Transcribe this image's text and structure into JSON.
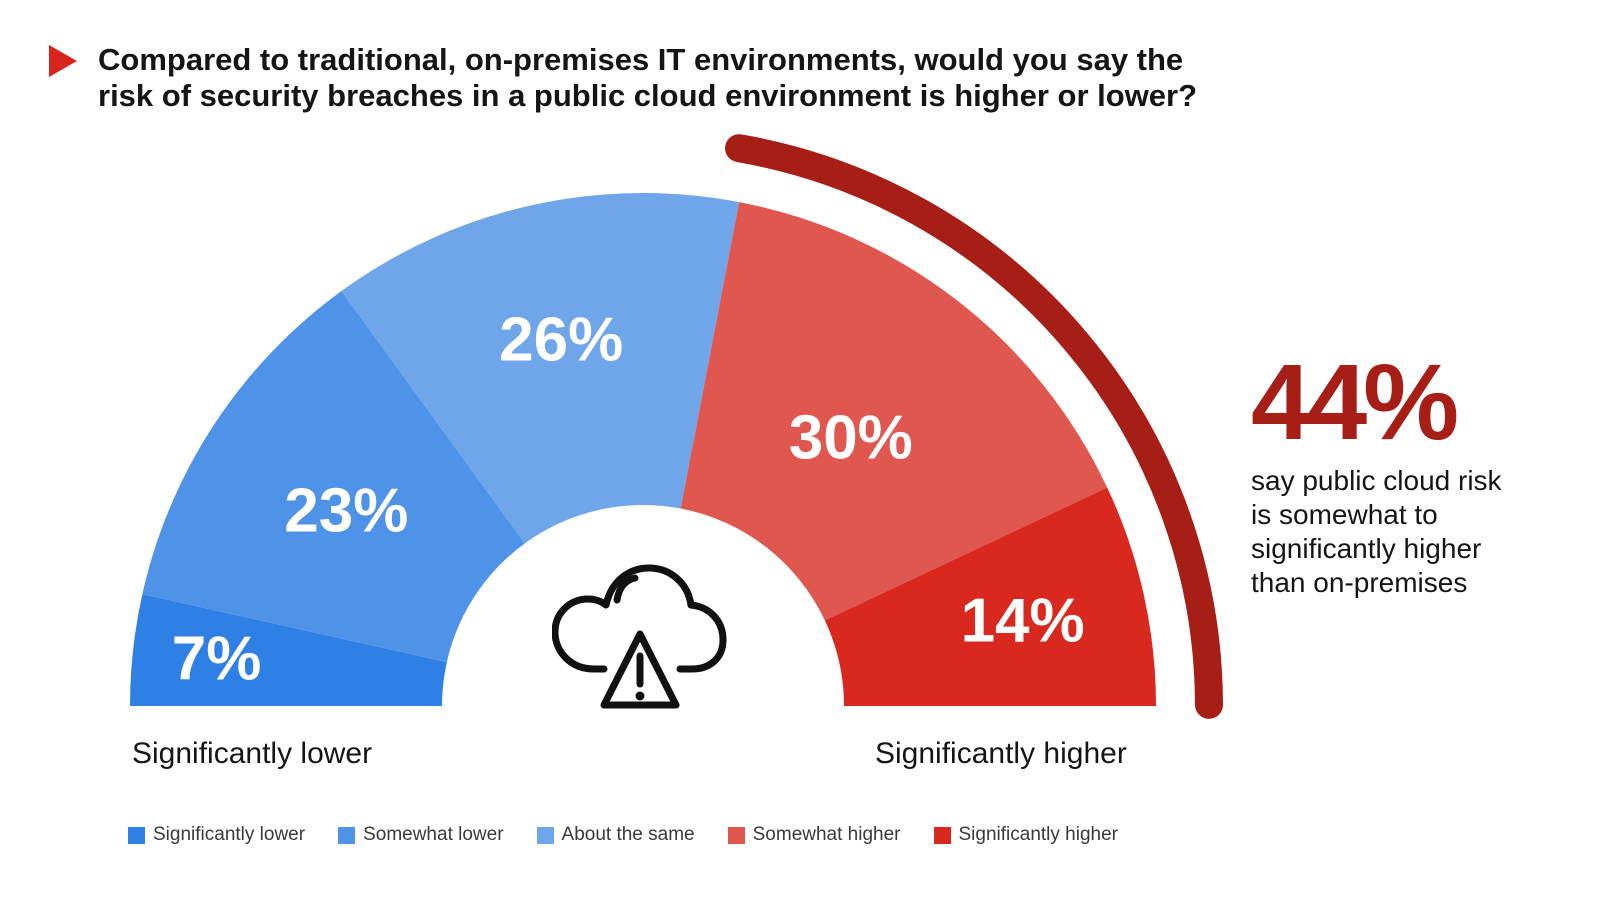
{
  "question": {
    "line_1": "Compared to traditional, on-premises IT environments, would you say the",
    "line_2": "risk of security breaches in a public cloud environment is higher or lower?"
  },
  "icon": {
    "question_marker": "play-triangle-icon",
    "center_icon": "cloud-warning-icon"
  },
  "chart_data": {
    "type": "pie",
    "layout": "semicircle-donut",
    "title": "Compared to traditional, on-premises IT environments, would you say the risk of security breaches in a public cloud environment is higher or lower?",
    "categories": [
      "Significantly lower",
      "Somewhat lower",
      "About the same",
      "Somewhat higher",
      "Significantly higher"
    ],
    "values": [
      7,
      23,
      26,
      30,
      14
    ],
    "labels": [
      "7%",
      "23%",
      "26%",
      "30%",
      "14%"
    ],
    "colors": [
      "#2f80e5",
      "#4f93e8",
      "#6fa6ea",
      "#e05750",
      "#d9291f"
    ],
    "endpoints": {
      "left": "Significantly lower",
      "right": "Significantly higher"
    },
    "callout": {
      "value": "44%",
      "text": "say public cloud risk is somewhat to significantly higher than on-premises",
      "accent_color": "#a71e16"
    },
    "legend": [
      {
        "label": "Significantly lower",
        "color": "#2f80e5"
      },
      {
        "label": "Somewhat lower",
        "color": "#4f93e8"
      },
      {
        "label": "About the same",
        "color": "#6fa6ea"
      },
      {
        "label": "Somewhat higher",
        "color": "#e05750"
      },
      {
        "label": "Significantly higher",
        "color": "#d9291f"
      }
    ],
    "legend_placement": "bottom",
    "grid": false
  }
}
